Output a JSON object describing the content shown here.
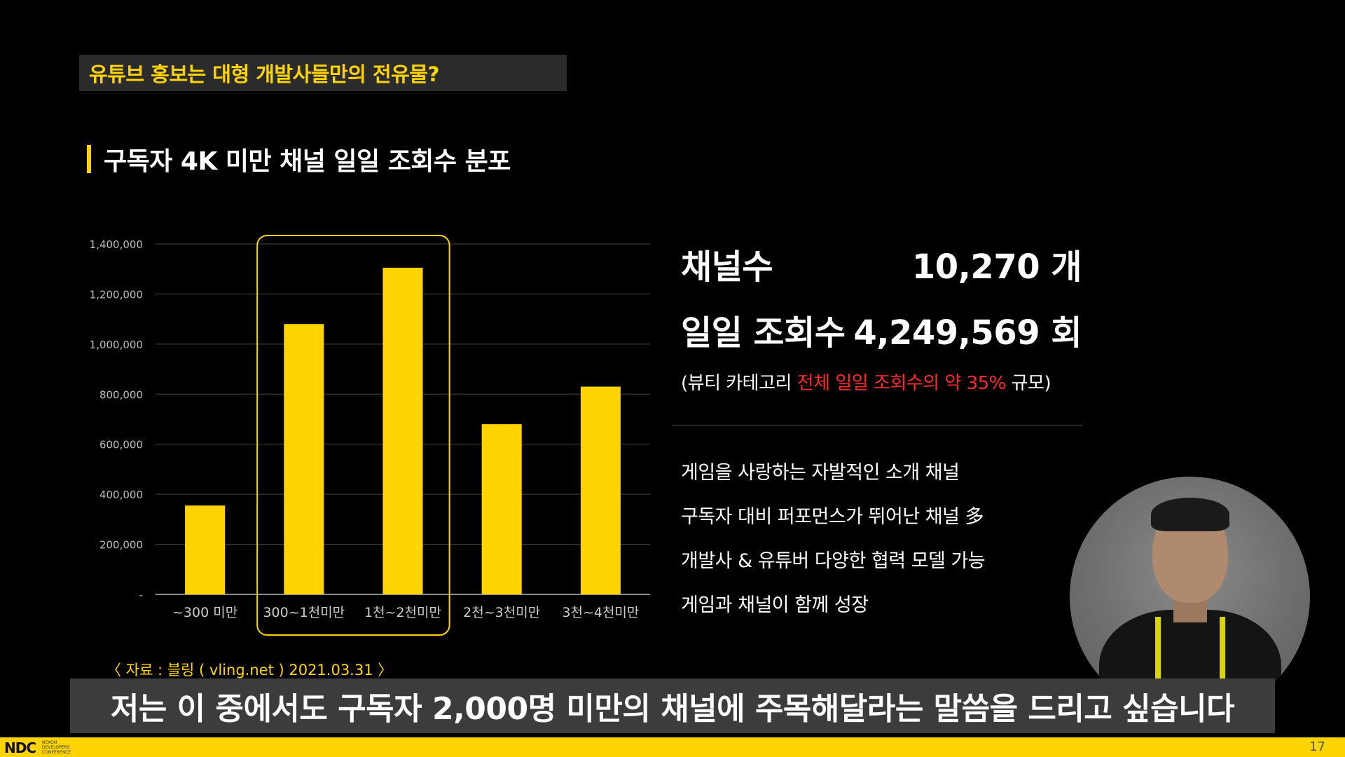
{
  "slide": {
    "header_title": "유튜브 홍보는 대형 개발사들만의 전유물?",
    "section_title": "구독자 4K 미만 채널 일일 조회수 분포",
    "source": "〈 자료 : 블링 ( vling.net ) 2021.03.31 〉",
    "page_number": "17"
  },
  "chart_data": {
    "type": "bar",
    "categories": [
      "~300 미만",
      "300~1천미만",
      "1천~2천미만",
      "2천~3천미만",
      "3천~4천미만"
    ],
    "values": [
      355000,
      1080000,
      1305000,
      680000,
      830000
    ],
    "ylim": [
      0,
      1400000
    ],
    "y_ticks": [
      {
        "value": 0,
        "label": "-"
      },
      {
        "value": 200000,
        "label": "200,000"
      },
      {
        "value": 400000,
        "label": "400,000"
      },
      {
        "value": 600000,
        "label": "600,000"
      },
      {
        "value": 800000,
        "label": "800,000"
      },
      {
        "value": 1000000,
        "label": "1,000,000"
      },
      {
        "value": 1200000,
        "label": "1,200,000"
      },
      {
        "value": 1400000,
        "label": "1,400,000"
      }
    ],
    "grid": true,
    "bar_color": "#ffd400",
    "highlight": {
      "from_index": 1,
      "to_index": 2,
      "color": "#ffd400"
    }
  },
  "stats": {
    "channels_label": "채널수",
    "channels_value": "10,270 개",
    "views_label": "일일 조회수",
    "views_value": "4,249,569 회",
    "note_prefix": "(뷰티 카테고리 ",
    "note_highlight": "전체 일일 조회수의 약 35%",
    "note_suffix": " 규모)",
    "highlight_color": "#ff2a2a"
  },
  "bullets": [
    "게임을 사랑하는 자발적인 소개 채널",
    "구독자 대비 퍼포먼스가 뛰어난 채널 多",
    "개발사 & 유튜버 다양한 협력 모델 가능",
    "게임과 채널이 함께 성장"
  ],
  "caption": "저는 이 중에서도 구독자 2,000명 미만의 채널에 주목해달라는 말씀을 드리고 싶습니다",
  "footer": {
    "logo": "NDC",
    "logo_sub": [
      "NEXON",
      "DEVELOPERS",
      "CONFERENCE"
    ]
  }
}
